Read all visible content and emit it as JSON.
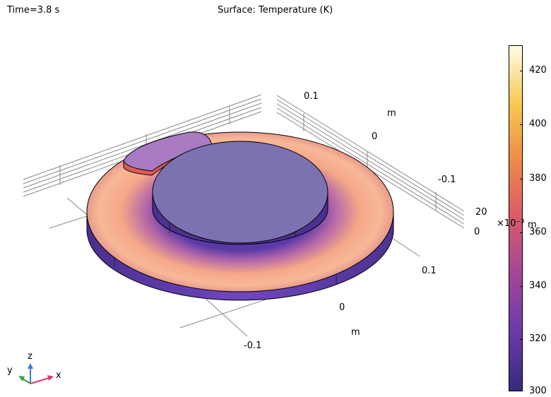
{
  "header": {
    "time": "Time=3.8 s",
    "title": "Surface: Temperature (K)"
  },
  "axes": {
    "y_ticks": [
      "0.1",
      "0",
      "-0.1"
    ],
    "y_unit": "m",
    "x_ticks": [
      "0.1",
      "0",
      "-0.1"
    ],
    "x_unit": "m",
    "z_ticks": [
      "20",
      "0"
    ],
    "z_exponent": "×10⁻³",
    "z_unit": "m"
  },
  "colorbar": {
    "ticks": [
      "420",
      "400",
      "380",
      "360",
      "340",
      "320",
      "300"
    ],
    "colors": [
      "#fffbe7",
      "#f7c84f",
      "#f08a47",
      "#d85a6a",
      "#a0469a",
      "#6a3aaa",
      "#372a7f"
    ]
  },
  "triad": {
    "x": "x",
    "y": "y",
    "z": "z"
  }
}
